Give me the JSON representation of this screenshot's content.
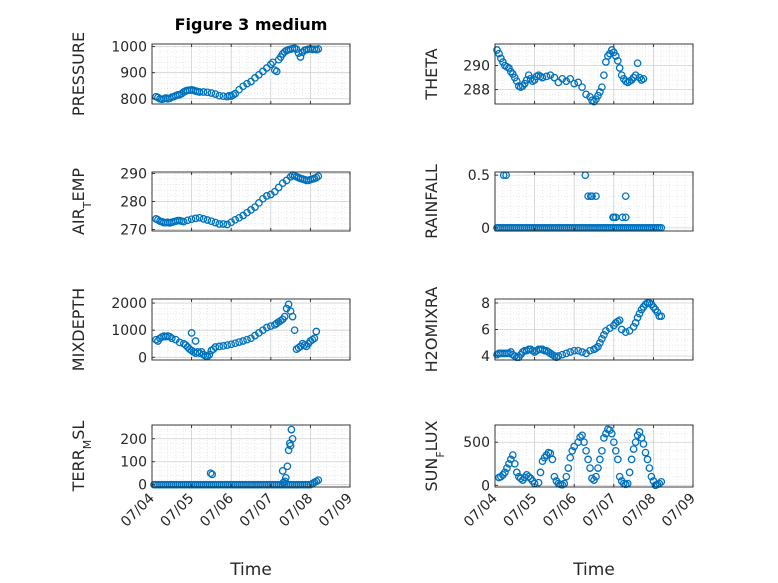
{
  "window": {
    "title": "Figure 3 medium"
  },
  "x_axis": {
    "label": "Time",
    "tick_labels": [
      "07/04",
      "07/05",
      "07/06",
      "07/07",
      "07/08",
      "07/09"
    ],
    "xlim": [
      0,
      5
    ]
  },
  "colors": {
    "marker": "#0072BD",
    "axes": "#262626",
    "grid": "#dfdfdf"
  },
  "chart_data": [
    {
      "type": "scatter",
      "title": "Figure 3 medium",
      "ylabel": "PRESSURE",
      "ylim": [
        780,
        1010
      ],
      "yticks": [
        800,
        900,
        1000
      ],
      "ytick_labels": [
        "800",
        "900",
        "1000"
      ],
      "show_xticklabels": false,
      "x": [
        0.1,
        0.15,
        0.2,
        0.25,
        0.3,
        0.35,
        0.4,
        0.45,
        0.5,
        0.55,
        0.6,
        0.65,
        0.7,
        0.75,
        0.8,
        0.85,
        0.9,
        0.95,
        1.0,
        1.05,
        1.1,
        1.15,
        1.2,
        1.3,
        1.4,
        1.5,
        1.6,
        1.7,
        1.8,
        1.9,
        1.95,
        2.0,
        2.05,
        2.1,
        2.2,
        2.3,
        2.4,
        2.5,
        2.6,
        2.7,
        2.8,
        2.9,
        3.0,
        3.05,
        3.1,
        3.15,
        3.2,
        3.25,
        3.3,
        3.35,
        3.4,
        3.45,
        3.5,
        3.55,
        3.6,
        3.65,
        3.7,
        3.75,
        3.8,
        3.85,
        3.9,
        3.95,
        4.0,
        4.05,
        4.1,
        4.15,
        4.2
      ],
      "y": [
        808,
        805,
        800,
        798,
        800,
        803,
        800,
        802,
        806,
        808,
        812,
        815,
        816,
        820,
        826,
        830,
        832,
        833,
        834,
        832,
        830,
        828,
        826,
        826,
        825,
        822,
        818,
        812,
        810,
        808,
        812,
        810,
        815,
        820,
        835,
        848,
        858,
        866,
        880,
        892,
        905,
        918,
        932,
        940,
        910,
        905,
        950,
        960,
        972,
        980,
        985,
        988,
        990,
        992,
        993,
        990,
        975,
        960,
        978,
        986,
        988,
        990,
        992,
        989,
        990,
        988,
        991
      ]
    },
    {
      "type": "scatter",
      "ylabel": "THETA",
      "ylim": [
        286.8,
        291.8
      ],
      "yticks": [
        288,
        290
      ],
      "ytick_labels": [
        "288",
        "290"
      ],
      "show_xticklabels": false,
      "x": [
        0.05,
        0.1,
        0.15,
        0.2,
        0.25,
        0.3,
        0.35,
        0.4,
        0.45,
        0.5,
        0.55,
        0.6,
        0.65,
        0.7,
        0.75,
        0.8,
        0.85,
        0.9,
        0.95,
        1.0,
        1.05,
        1.1,
        1.15,
        1.2,
        1.3,
        1.4,
        1.5,
        1.6,
        1.7,
        1.8,
        1.9,
        2.0,
        2.1,
        2.2,
        2.3,
        2.4,
        2.45,
        2.5,
        2.55,
        2.6,
        2.65,
        2.7,
        2.75,
        2.8,
        2.85,
        2.9,
        2.95,
        3.0,
        3.05,
        3.1,
        3.15,
        3.2,
        3.25,
        3.3,
        3.35,
        3.4,
        3.45,
        3.5,
        3.55,
        3.6,
        3.65,
        3.7,
        3.75
      ],
      "y": [
        291.3,
        291.0,
        290.6,
        290.3,
        290.0,
        289.9,
        289.8,
        289.5,
        289.3,
        289.0,
        288.7,
        288.3,
        288.2,
        288.3,
        288.5,
        288.8,
        289.2,
        288.9,
        288.7,
        288.8,
        289.1,
        289.2,
        289.1,
        289.0,
        289.1,
        289.2,
        289.0,
        288.6,
        288.9,
        288.7,
        288.9,
        288.5,
        288.6,
        288.2,
        287.6,
        287.4,
        287.1,
        287.0,
        287.2,
        287.5,
        287.8,
        288.2,
        289.2,
        290.3,
        290.8,
        291.0,
        291.3,
        291.1,
        290.8,
        290.4,
        289.8,
        289.2,
        288.9,
        288.7,
        288.6,
        288.7,
        288.8,
        289.0,
        289.2,
        290.2,
        289.0,
        288.8,
        288.9
      ]
    },
    {
      "type": "scatter",
      "ylabel": "AIR_TEMP",
      "ylim": [
        269.5,
        290.5
      ],
      "yticks": [
        270,
        280,
        290
      ],
      "ytick_labels": [
        "270",
        "280",
        "290"
      ],
      "show_xticklabels": false,
      "x": [
        0.1,
        0.15,
        0.2,
        0.25,
        0.3,
        0.35,
        0.4,
        0.45,
        0.5,
        0.55,
        0.6,
        0.65,
        0.7,
        0.75,
        0.8,
        0.9,
        1.0,
        1.1,
        1.2,
        1.3,
        1.4,
        1.5,
        1.6,
        1.7,
        1.8,
        1.9,
        2.0,
        2.1,
        2.2,
        2.3,
        2.4,
        2.5,
        2.6,
        2.7,
        2.8,
        2.9,
        3.0,
        3.1,
        3.2,
        3.3,
        3.4,
        3.5,
        3.55,
        3.6,
        3.65,
        3.7,
        3.75,
        3.8,
        3.85,
        3.9,
        3.95,
        4.0,
        4.05,
        4.1,
        4.15,
        4.2
      ],
      "y": [
        273.8,
        273.5,
        273.0,
        272.8,
        272.5,
        272.5,
        272.6,
        272.4,
        272.6,
        272.8,
        273.0,
        273.2,
        273.2,
        273.0,
        272.8,
        273.3,
        273.7,
        274.0,
        274.2,
        273.8,
        273.4,
        273.0,
        272.5,
        272.0,
        272.0,
        271.8,
        272.6,
        273.5,
        274.2,
        275.0,
        276.0,
        277.0,
        278.0,
        279.5,
        281.0,
        282.0,
        282.5,
        283.5,
        285.0,
        286.5,
        287.5,
        288.8,
        289.4,
        289.2,
        288.8,
        288.5,
        288.2,
        288.0,
        287.8,
        287.5,
        287.5,
        287.8,
        288.0,
        288.2,
        288.5,
        289.0
      ]
    },
    {
      "type": "scatter",
      "ylabel": "RAINFALL",
      "ylim": [
        -0.03,
        0.53
      ],
      "yticks": [
        0,
        0.5
      ],
      "ytick_labels": [
        "0",
        "0.5"
      ],
      "show_xticklabels": false,
      "x": [
        0.05,
        0.1,
        0.15,
        0.2,
        0.25,
        0.3,
        0.35,
        0.4,
        0.45,
        0.5,
        0.55,
        0.6,
        0.65,
        0.7,
        0.75,
        0.8,
        0.85,
        0.9,
        0.95,
        1.0,
        1.05,
        1.1,
        1.15,
        1.2,
        1.25,
        1.3,
        1.35,
        1.4,
        1.45,
        1.5,
        1.55,
        1.6,
        1.65,
        1.7,
        1.75,
        1.8,
        1.85,
        1.9,
        1.95,
        2.0,
        2.05,
        2.1,
        2.15,
        2.2,
        2.25,
        2.3,
        2.35,
        2.4,
        2.45,
        2.5,
        2.55,
        2.6,
        2.65,
        2.7,
        2.75,
        2.8,
        2.85,
        2.9,
        2.95,
        3.0,
        3.05,
        3.1,
        3.15,
        3.2,
        3.25,
        3.3,
        3.35,
        3.4,
        3.45,
        3.5,
        3.55,
        3.6,
        3.65,
        3.7,
        3.75,
        3.8,
        3.85,
        3.9,
        3.95,
        4.0,
        4.05,
        4.1,
        4.15,
        4.2,
        0.22,
        0.28,
        2.28,
        2.35,
        2.42,
        2.45,
        2.55,
        2.98,
        3.0,
        3.05,
        3.22,
        3.3,
        3.3
      ],
      "y": [
        0,
        0,
        0,
        0,
        0,
        0,
        0,
        0,
        0,
        0,
        0,
        0,
        0,
        0,
        0,
        0,
        0,
        0,
        0,
        0,
        0,
        0,
        0,
        0,
        0,
        0,
        0,
        0,
        0,
        0,
        0,
        0,
        0,
        0,
        0,
        0,
        0,
        0,
        0,
        0,
        0,
        0,
        0,
        0,
        0,
        0,
        0,
        0,
        0,
        0,
        0,
        0,
        0,
        0,
        0,
        0,
        0,
        0,
        0,
        0,
        0,
        0,
        0,
        0,
        0,
        0,
        0,
        0,
        0,
        0,
        0,
        0,
        0,
        0,
        0,
        0,
        0,
        0,
        0,
        0,
        0,
        0,
        0,
        0,
        0.5,
        0.5,
        0.5,
        0.3,
        0.3,
        0.3,
        0.3,
        0.1,
        0.1,
        0.1,
        0.1,
        0.3,
        0.1
      ]
    },
    {
      "type": "scatter",
      "ylabel": "MIXDEPTH",
      "ylim": [
        -100,
        2150
      ],
      "yticks": [
        0,
        1000,
        2000
      ],
      "ytick_labels": [
        "0",
        "1000",
        "2000"
      ],
      "show_xticklabels": false,
      "x": [
        0.1,
        0.15,
        0.2,
        0.25,
        0.3,
        0.35,
        0.4,
        0.45,
        0.5,
        0.6,
        0.7,
        0.8,
        0.85,
        0.9,
        0.95,
        1.0,
        1.05,
        1.1,
        1.15,
        1.2,
        1.25,
        1.3,
        1.35,
        1.4,
        1.45,
        1.5,
        1.55,
        1.6,
        1.7,
        1.8,
        1.9,
        2.0,
        2.1,
        2.2,
        2.3,
        2.4,
        2.5,
        2.6,
        2.7,
        2.8,
        2.9,
        3.0,
        3.1,
        3.15,
        3.2,
        3.25,
        3.3,
        3.35,
        3.4,
        3.45,
        3.5,
        3.55,
        3.6,
        3.65,
        3.7,
        3.75,
        3.8,
        3.85,
        3.9,
        3.95,
        4.0,
        4.05,
        4.1,
        4.15,
        1.0,
        1.1
      ],
      "y": [
        650,
        600,
        700,
        750,
        780,
        760,
        780,
        760,
        700,
        650,
        550,
        500,
        450,
        380,
        300,
        250,
        200,
        150,
        200,
        150,
        200,
        100,
        50,
        30,
        100,
        250,
        300,
        380,
        400,
        420,
        450,
        480,
        520,
        560,
        600,
        650,
        700,
        800,
        900,
        1000,
        1100,
        1150,
        1200,
        1250,
        1300,
        1350,
        1400,
        1500,
        1800,
        1950,
        1700,
        1500,
        1000,
        300,
        350,
        400,
        500,
        450,
        400,
        500,
        600,
        650,
        700,
        950,
        900,
        600
      ]
    },
    {
      "type": "scatter",
      "ylabel": "H2OMIXRA",
      "ylim": [
        3.7,
        8.3
      ],
      "yticks": [
        4,
        6,
        8
      ],
      "ytick_labels": [
        "4",
        "6",
        "8"
      ],
      "show_xticklabels": false,
      "x": [
        0.05,
        0.1,
        0.15,
        0.2,
        0.25,
        0.3,
        0.35,
        0.4,
        0.45,
        0.5,
        0.55,
        0.6,
        0.65,
        0.7,
        0.75,
        0.8,
        0.85,
        0.9,
        0.95,
        1.0,
        1.05,
        1.1,
        1.15,
        1.2,
        1.25,
        1.3,
        1.35,
        1.4,
        1.45,
        1.5,
        1.55,
        1.6,
        1.7,
        1.8,
        1.9,
        2.0,
        2.1,
        2.2,
        2.3,
        2.4,
        2.5,
        2.55,
        2.6,
        2.65,
        2.7,
        2.75,
        2.8,
        2.9,
        3.0,
        3.05,
        3.1,
        3.15,
        3.2,
        3.3,
        3.4,
        3.5,
        3.55,
        3.6,
        3.65,
        3.7,
        3.75,
        3.8,
        3.85,
        3.9,
        3.95,
        4.0,
        4.05,
        4.1,
        4.15,
        4.2
      ],
      "y": [
        4.1,
        4.2,
        4.2,
        4.2,
        4.2,
        4.2,
        4.2,
        4.3,
        4.1,
        4.0,
        3.9,
        3.9,
        4.1,
        4.3,
        4.4,
        4.4,
        4.5,
        4.5,
        4.4,
        4.3,
        4.4,
        4.5,
        4.5,
        4.5,
        4.4,
        4.4,
        4.3,
        4.2,
        4.1,
        4.0,
        3.9,
        4.0,
        4.1,
        4.2,
        4.3,
        4.4,
        4.4,
        4.3,
        4.2,
        4.4,
        4.5,
        4.6,
        4.7,
        5.0,
        5.3,
        5.6,
        5.9,
        6.1,
        6.3,
        6.5,
        6.6,
        6.7,
        6.0,
        5.8,
        5.9,
        6.2,
        6.5,
        6.9,
        7.2,
        7.5,
        7.7,
        7.9,
        8.0,
        8.0,
        7.9,
        7.7,
        7.5,
        7.3,
        7.0,
        7.0
      ]
    },
    {
      "type": "scatter",
      "ylabel": "TERR_MSL",
      "ylim": [
        -10,
        260
      ],
      "yticks": [
        0,
        100,
        200
      ],
      "ytick_labels": [
        "0",
        "100",
        "200"
      ],
      "show_xticklabels": true,
      "x": [
        0.05,
        0.1,
        0.15,
        0.2,
        0.25,
        0.3,
        0.35,
        0.4,
        0.45,
        0.5,
        0.55,
        0.6,
        0.65,
        0.7,
        0.75,
        0.8,
        0.85,
        0.9,
        0.95,
        1.0,
        1.05,
        1.1,
        1.15,
        1.2,
        1.25,
        1.3,
        1.35,
        1.4,
        1.45,
        1.5,
        1.55,
        1.6,
        1.65,
        1.7,
        1.75,
        1.8,
        1.85,
        1.9,
        1.95,
        2.0,
        2.05,
        2.1,
        2.15,
        2.2,
        2.25,
        2.3,
        2.35,
        2.4,
        2.45,
        2.5,
        2.55,
        2.6,
        2.65,
        2.7,
        2.75,
        2.8,
        2.85,
        2.9,
        2.95,
        3.0,
        3.05,
        3.1,
        3.15,
        3.2,
        3.25,
        3.3,
        3.35,
        3.4,
        3.45,
        3.5,
        3.55,
        3.6,
        3.65,
        3.7,
        3.75,
        3.8,
        3.85,
        3.9,
        3.95,
        4.0,
        4.05,
        4.1,
        4.15,
        4.2,
        1.48,
        1.52,
        3.3,
        3.38,
        3.42,
        3.45,
        3.48,
        3.5,
        3.52,
        3.55,
        3.32,
        3.36
      ],
      "y": [
        0,
        0,
        0,
        0,
        0,
        0,
        0,
        0,
        0,
        0,
        0,
        0,
        0,
        0,
        0,
        0,
        0,
        0,
        0,
        0,
        0,
        0,
        0,
        0,
        0,
        0,
        0,
        0,
        0,
        0,
        0,
        0,
        0,
        0,
        0,
        0,
        0,
        0,
        0,
        0,
        0,
        0,
        0,
        0,
        0,
        0,
        0,
        0,
        0,
        0,
        0,
        0,
        0,
        0,
        0,
        0,
        0,
        0,
        0,
        0,
        0,
        0,
        0,
        0,
        0,
        0,
        0,
        0,
        0,
        0,
        0,
        0,
        0,
        0,
        0,
        0,
        0,
        0,
        0,
        0,
        5,
        10,
        15,
        20,
        50,
        45,
        60,
        30,
        80,
        150,
        180,
        170,
        240,
        200,
        10,
        15
      ]
    },
    {
      "type": "scatter",
      "ylabel": "SUN_FLUX",
      "ylim": [
        -20,
        700
      ],
      "yticks": [
        0,
        500
      ],
      "ytick_labels": [
        "0",
        "500"
      ],
      "show_xticklabels": true,
      "x": [
        0.1,
        0.15,
        0.2,
        0.25,
        0.3,
        0.35,
        0.4,
        0.45,
        0.5,
        0.55,
        0.6,
        0.65,
        0.7,
        0.75,
        0.8,
        0.85,
        0.9,
        0.95,
        1.0,
        1.1,
        1.15,
        1.2,
        1.25,
        1.3,
        1.35,
        1.4,
        1.45,
        1.5,
        1.55,
        1.6,
        1.65,
        1.7,
        1.75,
        1.8,
        1.85,
        1.9,
        1.95,
        2.0,
        2.1,
        2.15,
        2.2,
        2.25,
        2.3,
        2.35,
        2.4,
        2.45,
        2.5,
        2.55,
        2.6,
        2.65,
        2.7,
        2.75,
        2.8,
        2.85,
        2.9,
        2.95,
        3.0,
        3.05,
        3.1,
        3.15,
        3.2,
        3.25,
        3.3,
        3.35,
        3.4,
        3.45,
        3.5,
        3.55,
        3.6,
        3.65,
        3.7,
        3.75,
        3.8,
        3.85,
        3.9,
        3.95,
        4.0,
        4.05,
        4.1,
        4.15,
        4.2
      ],
      "y": [
        90,
        100,
        120,
        150,
        200,
        250,
        300,
        350,
        250,
        150,
        100,
        80,
        60,
        90,
        120,
        100,
        80,
        50,
        20,
        30,
        150,
        280,
        320,
        350,
        380,
        370,
        300,
        100,
        50,
        20,
        10,
        5,
        20,
        100,
        200,
        320,
        400,
        450,
        500,
        560,
        580,
        500,
        400,
        300,
        200,
        80,
        60,
        100,
        200,
        300,
        400,
        550,
        600,
        650,
        640,
        600,
        500,
        400,
        300,
        100,
        50,
        20,
        10,
        20,
        150,
        300,
        420,
        500,
        580,
        620,
        550,
        480,
        380,
        300,
        200,
        100,
        50,
        0,
        10,
        20,
        40
      ]
    }
  ]
}
